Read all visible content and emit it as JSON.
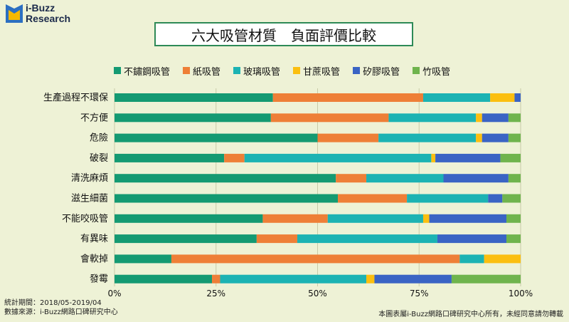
{
  "brand": {
    "line1": "i-Buzz",
    "line2": "Research"
  },
  "colors": {
    "background": "#eef2d6",
    "series": [
      "#149a72",
      "#ee7f37",
      "#1cb3b3",
      "#fbbf10",
      "#3a64c4",
      "#6fb44d"
    ]
  },
  "footer": {
    "period": "統計期間：2018/05-2019/04",
    "source": "數據來源：i-Buzz網路口碑研究中心",
    "copyright": "本圖表屬i-Buzz網路口碑研究中心所有，未經同意請勿轉載"
  },
  "chart_data": {
    "type": "bar",
    "orientation": "horizontal",
    "stacked": true,
    "percent": true,
    "title": "六大吸管材質　負面評價比較",
    "xlim": [
      0,
      100
    ],
    "xticks": [
      "0%",
      "25%",
      "50%",
      "75%",
      "100%"
    ],
    "legend_position": "top",
    "categories": [
      "生產過程不環保",
      "不方便",
      "危險",
      "破裂",
      "清洗麻煩",
      "滋生細菌",
      "不能咬吸管",
      "有異味",
      "會軟掉",
      "發霉"
    ],
    "series": [
      {
        "name": "不鏽鋼吸管",
        "values": [
          39,
          38.5,
          50,
          27,
          54.5,
          55,
          36.5,
          35,
          14,
          24
        ]
      },
      {
        "name": "紙吸管",
        "values": [
          37,
          29,
          15,
          5,
          7.5,
          17,
          16,
          10,
          71,
          2
        ]
      },
      {
        "name": "玻璃吸管",
        "values": [
          16.5,
          21.5,
          24,
          46,
          19,
          20,
          23.5,
          34.5,
          6,
          36
        ]
      },
      {
        "name": "甘蔗吸管",
        "values": [
          6,
          1.5,
          1.5,
          1,
          0,
          0,
          1.5,
          0,
          9,
          2
        ]
      },
      {
        "name": "矽膠吸管",
        "values": [
          1.5,
          6.5,
          6.5,
          16,
          16,
          3.5,
          19,
          17,
          0,
          19
        ]
      },
      {
        "name": "竹吸管",
        "values": [
          0,
          3,
          3,
          5,
          3,
          4.5,
          3.5,
          3.5,
          0,
          17
        ]
      }
    ]
  }
}
